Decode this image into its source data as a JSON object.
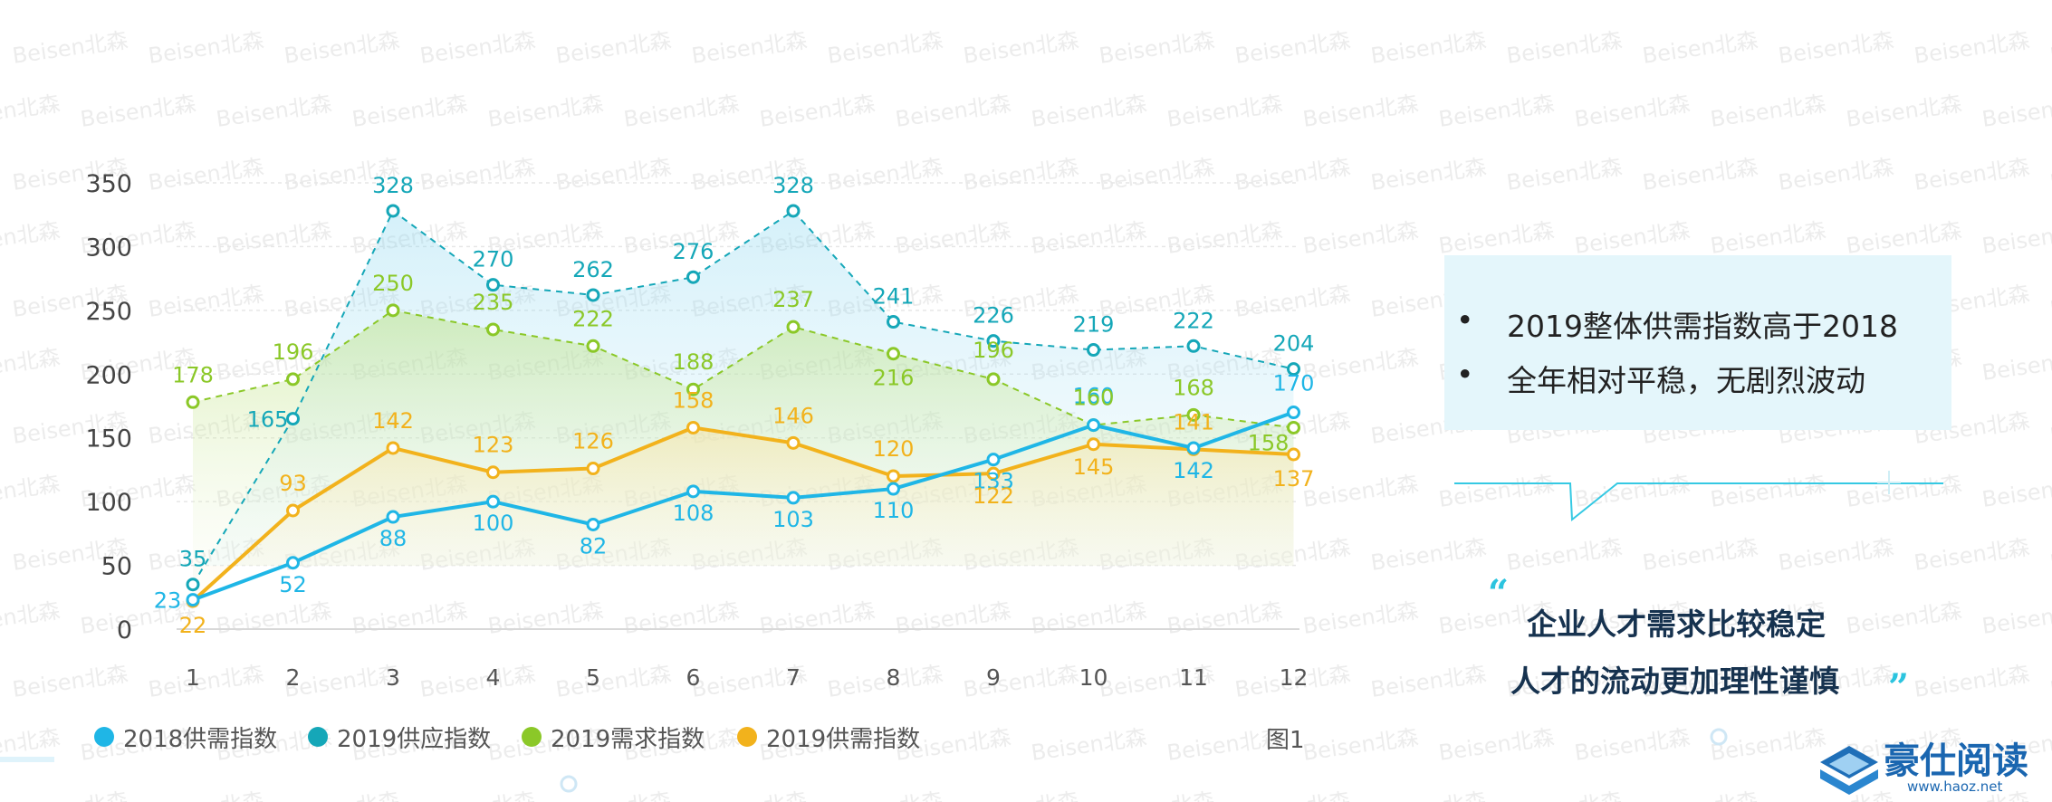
{
  "watermark_text": "Beisen北森",
  "chart_data": {
    "type": "line",
    "categories": [
      "1",
      "2",
      "3",
      "4",
      "5",
      "6",
      "7",
      "8",
      "9",
      "10",
      "11",
      "12"
    ],
    "yticks": [
      0,
      50,
      100,
      150,
      200,
      250,
      300,
      350
    ],
    "ylim": [
      0,
      350
    ],
    "grid": true,
    "legend_position": "bottom",
    "series": [
      {
        "name": "2018供需指数",
        "color": "#1fb6e6",
        "style": "solid",
        "values": [
          23,
          52,
          88,
          100,
          82,
          108,
          103,
          110,
          133,
          160,
          142,
          170
        ]
      },
      {
        "name": "2019供应指数",
        "color": "#15a7b8",
        "style": "dashed",
        "area": true,
        "values": [
          35,
          165,
          328,
          270,
          262,
          276,
          328,
          241,
          226,
          219,
          222,
          204
        ]
      },
      {
        "name": "2019需求指数",
        "color": "#8bc828",
        "style": "dashed",
        "area": true,
        "values": [
          178,
          196,
          250,
          235,
          222,
          188,
          237,
          216,
          196,
          160,
          168,
          158
        ]
      },
      {
        "name": "2019供需指数",
        "color": "#f2b21c",
        "style": "solid",
        "area": true,
        "values": [
          22,
          93,
          142,
          123,
          126,
          158,
          146,
          120,
          122,
          145,
          141,
          137
        ]
      }
    ],
    "figure_label": "图1"
  },
  "side_panel": {
    "bullet_symbol": "•",
    "bullets": [
      "2019整体供需指数高于2018",
      "全年相对平稳，无剧烈波动"
    ]
  },
  "quote": {
    "open_mark": "“",
    "close_mark": "”",
    "line1": "企业人才需求比较稳定",
    "line2": "人才的流动更加理性谨慎"
  },
  "logo": {
    "name": "豪仕阅读",
    "url": "www.haoz.net"
  }
}
